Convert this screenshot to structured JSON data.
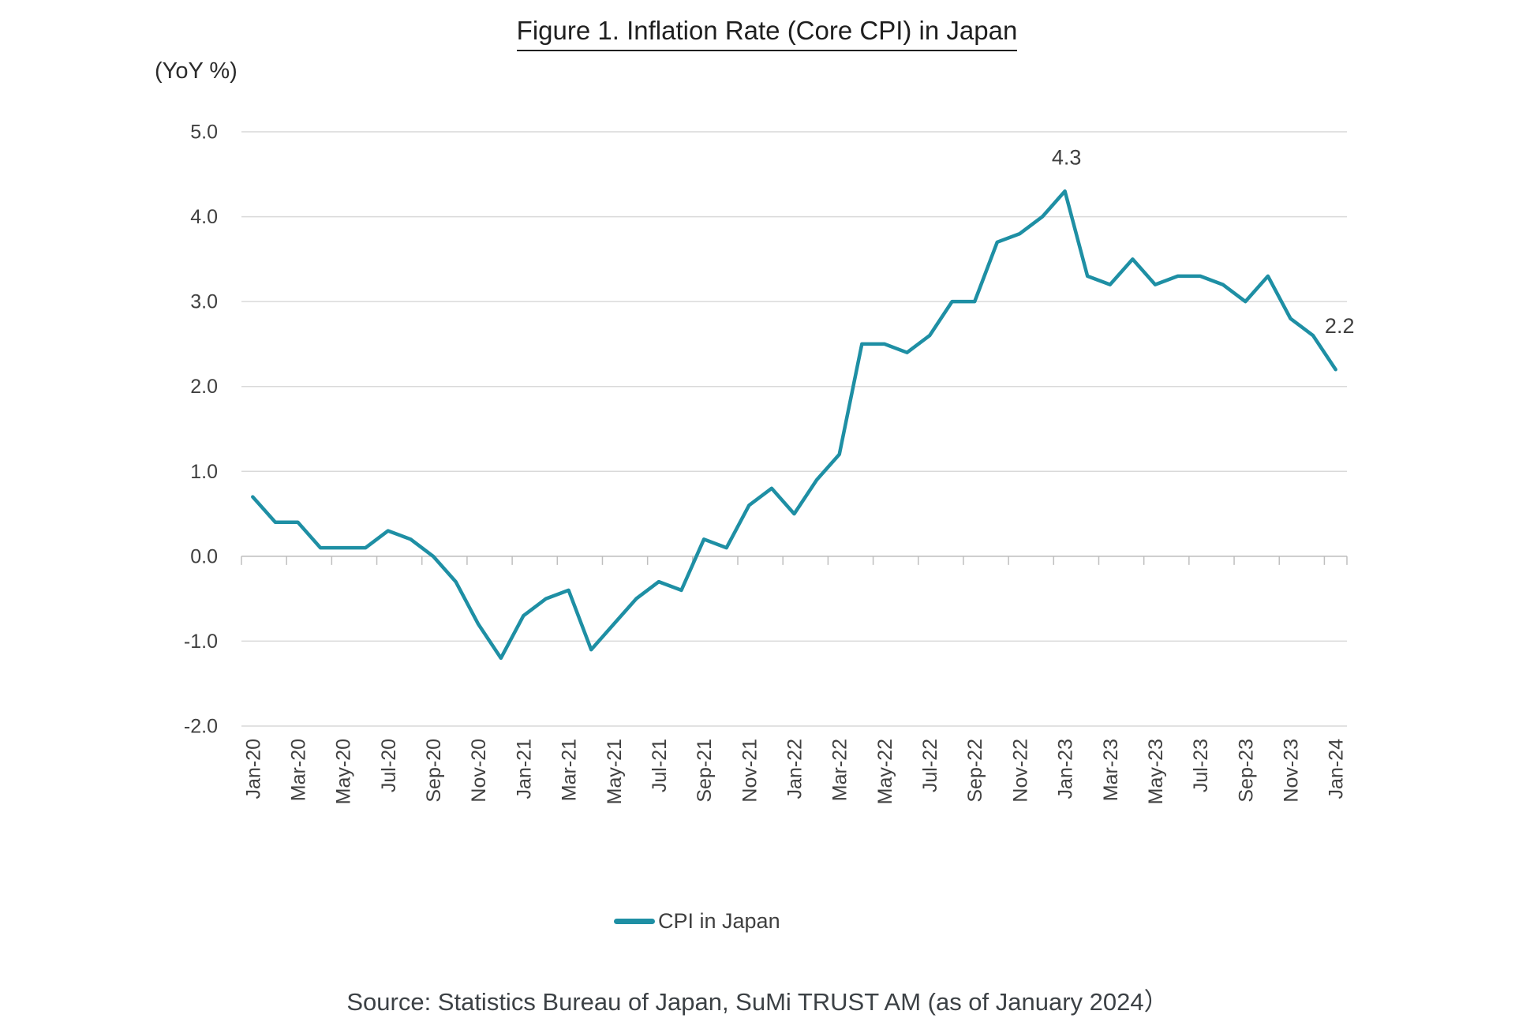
{
  "title": "Figure 1. Inflation Rate (Core CPI) in Japan",
  "y_axis_unit_label": "(YoY %)",
  "legend": {
    "label": "CPI in Japan"
  },
  "source": "Source: Statistics Bureau of Japan, SuMi TRUST AM (as of January 2024）",
  "colors": {
    "line": "#1E8FA4",
    "grid": "#D9D9D9",
    "axis": "#BFBFBF",
    "tick_text": "#404040",
    "title_text": "#1F1F1F",
    "annotation_text": "#3F3F3F"
  },
  "annotations": [
    {
      "text": "4.3",
      "month": "Jan-23",
      "index": 36
    },
    {
      "text": "2.2",
      "month": "Jan-24",
      "index": 48
    }
  ],
  "chart_data": {
    "type": "line",
    "title": "Figure 1. Inflation Rate (Core CPI) in Japan",
    "xlabel": "",
    "ylabel": "(YoY %)",
    "ylim": [
      -2.0,
      5.0
    ],
    "ytick_step": 1.0,
    "ytick_labels": [
      "5.0",
      "4.0",
      "3.0",
      "2.0",
      "1.0",
      "0.0",
      "-1.0",
      "-2.0"
    ],
    "grid": true,
    "legend_position": "bottom",
    "x": [
      "Jan-20",
      "Feb-20",
      "Mar-20",
      "Apr-20",
      "May-20",
      "Jun-20",
      "Jul-20",
      "Aug-20",
      "Sep-20",
      "Oct-20",
      "Nov-20",
      "Dec-20",
      "Jan-21",
      "Feb-21",
      "Mar-21",
      "Apr-21",
      "May-21",
      "Jun-21",
      "Jul-21",
      "Aug-21",
      "Sep-21",
      "Oct-21",
      "Nov-21",
      "Dec-21",
      "Jan-22",
      "Feb-22",
      "Mar-22",
      "Apr-22",
      "May-22",
      "Jun-22",
      "Jul-22",
      "Aug-22",
      "Sep-22",
      "Oct-22",
      "Nov-22",
      "Dec-22",
      "Jan-23",
      "Feb-23",
      "Mar-23",
      "Apr-23",
      "May-23",
      "Jun-23",
      "Jul-23",
      "Aug-23",
      "Sep-23",
      "Oct-23",
      "Nov-23",
      "Dec-23",
      "Jan-24"
    ],
    "xtick_labels": [
      "Jan-20",
      "Mar-20",
      "May-20",
      "Jul-20",
      "Sep-20",
      "Nov-20",
      "Jan-21",
      "Mar-21",
      "May-21",
      "Jul-21",
      "Sep-21",
      "Nov-21",
      "Jan-22",
      "Mar-22",
      "May-22",
      "Jul-22",
      "Sep-22",
      "Nov-22",
      "Jan-23",
      "Mar-23",
      "May-23",
      "Jul-23",
      "Sep-23",
      "Nov-23",
      "Jan-24"
    ],
    "series": [
      {
        "name": "CPI in Japan",
        "values": [
          0.7,
          0.4,
          0.4,
          0.1,
          0.1,
          0.1,
          0.3,
          0.2,
          0.0,
          -0.3,
          -0.8,
          -1.2,
          -0.7,
          -0.5,
          -0.4,
          -1.1,
          -0.8,
          -0.5,
          -0.3,
          -0.4,
          0.2,
          0.1,
          0.6,
          0.8,
          0.5,
          0.9,
          1.2,
          2.5,
          2.5,
          2.4,
          2.6,
          3.0,
          3.0,
          3.7,
          3.8,
          4.0,
          4.3,
          3.3,
          3.2,
          3.5,
          3.2,
          3.3,
          3.3,
          3.2,
          3.0,
          3.3,
          2.8,
          2.6,
          2.2
        ]
      }
    ]
  }
}
